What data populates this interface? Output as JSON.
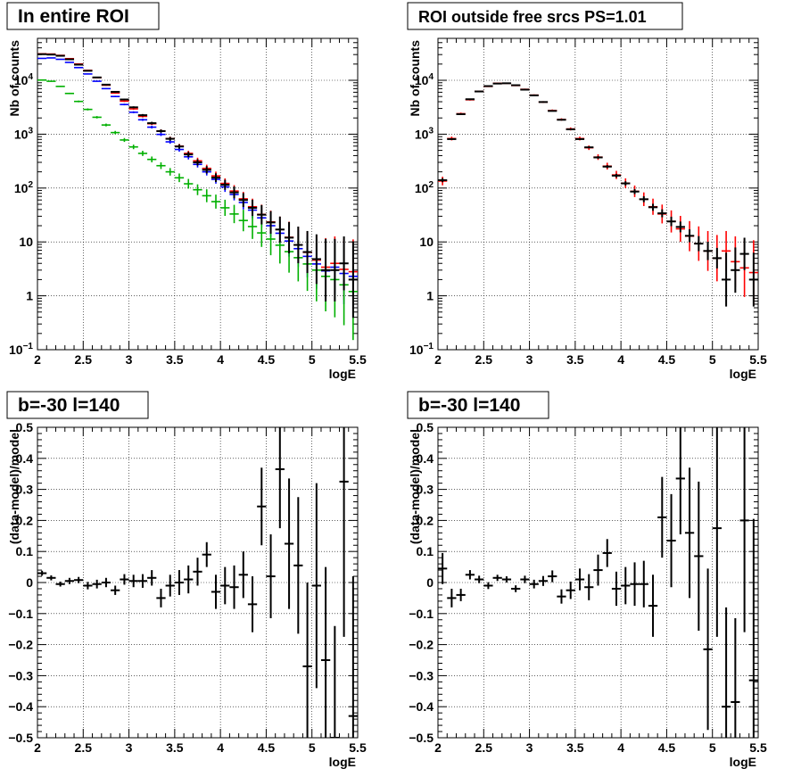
{
  "colors": {
    "data": "#000000",
    "model": "#ff0000",
    "model_blue": "#0000ff",
    "model_green": "#00b000",
    "grid": "#000000"
  },
  "chart_data": [
    {
      "type": "scatter",
      "title": "In entire ROI",
      "xlabel": "logE",
      "ylabel": "Nb of counts",
      "xlim": [
        2,
        5.5
      ],
      "ylim": [
        0.1,
        60000
      ],
      "yscale": "log",
      "grid": true,
      "xticks": [
        "2",
        "2.5",
        "3",
        "3.5",
        "4",
        "4.5",
        "5",
        "5.5"
      ],
      "yticks": [
        {
          "v": 0.1,
          "base": "10",
          "exp": "−1"
        },
        {
          "v": 1,
          "label": "1"
        },
        {
          "v": 10,
          "label": "10"
        },
        {
          "v": 100,
          "base": "10",
          "exp": "2"
        },
        {
          "v": 1000,
          "base": "10",
          "exp": "3"
        },
        {
          "v": 10000,
          "base": "10",
          "exp": "4"
        }
      ],
      "x": [
        2.05,
        2.15,
        2.25,
        2.35,
        2.45,
        2.55,
        2.65,
        2.75,
        2.85,
        2.95,
        3.05,
        3.15,
        3.25,
        3.35,
        3.45,
        3.55,
        3.65,
        3.75,
        3.85,
        3.95,
        4.05,
        4.15,
        4.25,
        4.35,
        4.45,
        4.55,
        4.65,
        4.75,
        4.85,
        4.95,
        5.05,
        5.15,
        5.25,
        5.35,
        5.45
      ],
      "series": [
        {
          "role": "data",
          "color": "#000000",
          "values": [
            30500,
            30000,
            28500,
            24500,
            19500,
            15000,
            11300,
            8300,
            6100,
            4400,
            3150,
            2250,
            1600,
            1140,
            820,
            590,
            420,
            300,
            218,
            156,
            115,
            83,
            60,
            43,
            32,
            23,
            17,
            12,
            8.8,
            6.5,
            4.8,
            3.0,
            3.0,
            4.0,
            2.0
          ],
          "err": [
            0.006,
            0.006,
            0.006,
            0.006,
            0.007,
            0.008,
            0.009,
            0.011,
            0.013,
            0.015,
            0.018,
            0.021,
            0.025,
            0.03,
            0.035,
            0.041,
            0.049,
            0.058,
            0.068,
            0.08,
            0.093,
            0.11,
            0.13,
            0.15,
            0.18,
            0.21,
            0.24,
            0.29,
            0.34,
            0.39,
            0.46,
            0.58,
            0.58,
            0.5,
            0.71
          ],
          "draw_err": false
        },
        {
          "role": "model",
          "color": "#ff0000",
          "values": [
            31000,
            30700,
            29000,
            25200,
            20100,
            15300,
            11200,
            8100,
            5800,
            4100,
            2950,
            2140,
            1560,
            1150,
            830,
            600,
            440,
            320,
            232,
            168,
            122,
            88,
            63,
            45,
            32.5,
            23.5,
            17,
            12.2,
            8.8,
            6.4,
            4.6,
            3.4,
            4.0,
            3.1,
            2.8
          ],
          "err": [
            0.006,
            0.006,
            0.006,
            0.006,
            0.007,
            0.008,
            0.009,
            0.011,
            0.013,
            0.015,
            0.018,
            0.021,
            0.025,
            0.03,
            0.035,
            0.041,
            0.049,
            0.058,
            0.068,
            0.08,
            0.093,
            0.11,
            0.13,
            0.15,
            0.18,
            0.21,
            0.24,
            0.29,
            0.34,
            0.39,
            0.46,
            0.54,
            0.5,
            0.57,
            0.6
          ],
          "draw_err": true
        },
        {
          "role": "model",
          "color": "#0000ff",
          "values": [
            25500,
            26000,
            24500,
            21500,
            17200,
            13100,
            9600,
            7000,
            5000,
            3550,
            2550,
            1850,
            1350,
            990,
            720,
            520,
            380,
            275,
            200,
            145,
            105,
            76,
            54,
            39,
            28,
            20,
            14.5,
            10.4,
            7.5,
            5.4,
            3.9,
            2.9,
            3.4,
            2.6,
            2.3
          ],
          "err": [
            0.006,
            0.006,
            0.006,
            0.006,
            0.007,
            0.008,
            0.009,
            0.011,
            0.013,
            0.015,
            0.018,
            0.021,
            0.025,
            0.03,
            0.035,
            0.041,
            0.049,
            0.058,
            0.068,
            0.08,
            0.093,
            0.11,
            0.13,
            0.15,
            0.18,
            0.21,
            0.24,
            0.29,
            0.34,
            0.39,
            0.46,
            0.54,
            0.5,
            0.57,
            0.6
          ],
          "draw_err": true
        },
        {
          "role": "model",
          "color": "#00b000",
          "values": [
            10100,
            9600,
            7700,
            5700,
            4050,
            2880,
            2060,
            1480,
            1070,
            780,
            580,
            440,
            340,
            260,
            200,
            155,
            120,
            93,
            72,
            56,
            43,
            33,
            25,
            19.3,
            14.7,
            11.3,
            8.7,
            6.6,
            5.1,
            3.9,
            3.0,
            2.3,
            2.0,
            1.6,
            1.2
          ],
          "err": [
            0.01,
            0.01,
            0.011,
            0.013,
            0.016,
            0.019,
            0.022,
            0.026,
            0.031,
            0.036,
            0.042,
            0.048,
            0.054,
            0.062,
            0.07,
            0.08,
            0.09,
            0.1,
            0.12,
            0.13,
            0.15,
            0.17,
            0.2,
            0.23,
            0.26,
            0.3,
            0.34,
            0.39,
            0.44,
            0.5,
            0.58,
            0.65,
            0.7,
            0.75,
            0.9
          ],
          "draw_err": true
        },
        {
          "role": "data",
          "color": "#000000",
          "values": [
            30500,
            30000,
            28500,
            24500,
            19500,
            15000,
            11300,
            8300,
            6100,
            4400,
            3150,
            2250,
            1600,
            1140,
            820,
            590,
            420,
            300,
            218,
            156,
            115,
            83,
            60,
            43,
            32,
            23,
            17,
            12,
            8.8,
            6.5,
            4.8,
            3.0,
            3.0,
            4.0,
            2.0
          ],
          "err": [
            0.006,
            0.006,
            0.006,
            0.006,
            0.007,
            0.008,
            0.009,
            0.011,
            0.013,
            0.015,
            0.018,
            0.021,
            0.025,
            0.03,
            0.035,
            0.041,
            0.049,
            0.058,
            0.068,
            0.08,
            0.093,
            0.11,
            0.13,
            0.15,
            0.18,
            0.21,
            0.24,
            0.29,
            0.34,
            0.39,
            0.46,
            0.58,
            0.58,
            0.5,
            0.71
          ],
          "draw_err": true
        }
      ]
    },
    {
      "type": "scatter",
      "title": "ROI outside free srcs PS=1.01",
      "xlabel": "logE",
      "ylabel": "Nb of counts",
      "xlim": [
        2,
        5.5
      ],
      "ylim": [
        0.1,
        60000
      ],
      "yscale": "log",
      "grid": true,
      "xticks": [
        "2",
        "2.5",
        "3",
        "3.5",
        "4",
        "4.5",
        "5",
        "5.5"
      ],
      "yticks": [
        {
          "v": 0.1,
          "base": "10",
          "exp": "−1"
        },
        {
          "v": 1,
          "label": "1"
        },
        {
          "v": 10,
          "label": "10"
        },
        {
          "v": 100,
          "base": "10",
          "exp": "2"
        },
        {
          "v": 1000,
          "base": "10",
          "exp": "3"
        },
        {
          "v": 10000,
          "base": "10",
          "exp": "4"
        }
      ],
      "x": [
        2.05,
        2.15,
        2.25,
        2.35,
        2.45,
        2.55,
        2.65,
        2.75,
        2.85,
        2.95,
        3.05,
        3.15,
        3.25,
        3.35,
        3.45,
        3.55,
        3.65,
        3.75,
        3.85,
        3.95,
        4.05,
        4.15,
        4.25,
        4.35,
        4.45,
        4.55,
        4.65,
        4.75,
        4.85,
        4.95,
        5.05,
        5.15,
        5.25,
        5.35,
        5.45
      ],
      "series": [
        {
          "role": "model",
          "color": "#ff0000",
          "values": [
            135,
            830,
            2400,
            4350,
            6250,
            7700,
            8800,
            8800,
            8000,
            6800,
            5300,
            3950,
            2750,
            1870,
            1250,
            830,
            560,
            375,
            255,
            175,
            123,
            87,
            62,
            45,
            33,
            24,
            17.5,
            12.8,
            9.3,
            6.8,
            5.0,
            6.8,
            4.3,
            3.3,
            2.7
          ],
          "err": [
            0.08,
            0.035,
            0.02,
            0.015,
            0.012,
            0.011,
            0.01,
            0.01,
            0.011,
            0.012,
            0.014,
            0.016,
            0.019,
            0.023,
            0.028,
            0.035,
            0.042,
            0.052,
            0.063,
            0.076,
            0.09,
            0.107,
            0.127,
            0.15,
            0.175,
            0.205,
            0.24,
            0.28,
            0.32,
            0.37,
            0.43,
            0.37,
            0.47,
            0.54,
            0.6
          ],
          "draw_err": true
        },
        {
          "role": "data",
          "color": "#000000",
          "values": [
            140,
            810,
            2350,
            4450,
            6200,
            7800,
            8700,
            8800,
            8100,
            6700,
            5250,
            3950,
            2700,
            1850,
            1230,
            810,
            570,
            370,
            250,
            170,
            122,
            86,
            62,
            44,
            34,
            24,
            19,
            13,
            9.3,
            6.8,
            5.0,
            2.0,
            3.0,
            6.0,
            2.0
          ],
          "err": [
            0.037,
            0.015,
            0.009,
            0.006,
            0.006,
            0.005,
            0.005,
            0.005,
            0.005,
            0.005,
            0.006,
            0.007,
            0.008,
            0.01,
            0.012,
            0.015,
            0.018,
            0.023,
            0.027,
            0.033,
            0.039,
            0.047,
            0.055,
            0.065,
            0.074,
            0.088,
            0.1,
            0.12,
            0.14,
            0.17,
            0.19,
            0.5,
            0.42,
            0.3,
            0.5
          ],
          "draw_err": true
        }
      ]
    },
    {
      "type": "scatter",
      "title": "b=-30 l=140",
      "xlabel": "logE",
      "ylabel": "(data-model)/model",
      "xlim": [
        2,
        5.5
      ],
      "ylim": [
        -0.5,
        0.5
      ],
      "yscale": "linear",
      "grid": true,
      "xticks": [
        "2",
        "2.5",
        "3",
        "3.5",
        "4",
        "4.5",
        "5",
        "5.5"
      ],
      "yticks": [
        {
          "v": -0.5,
          "label": "−0.5"
        },
        {
          "v": -0.4,
          "label": "−0.4"
        },
        {
          "v": -0.3,
          "label": "−0.3"
        },
        {
          "v": -0.2,
          "label": "−0.2"
        },
        {
          "v": -0.1,
          "label": "−0.1"
        },
        {
          "v": 0,
          "label": "0"
        },
        {
          "v": 0.1,
          "label": "0.1"
        },
        {
          "v": 0.2,
          "label": "0.2"
        },
        {
          "v": 0.3,
          "label": "0.3"
        },
        {
          "v": 0.4,
          "label": "0.4"
        },
        {
          "v": 0.5,
          "label": "0.5"
        }
      ],
      "x": [
        2.05,
        2.15,
        2.25,
        2.35,
        2.45,
        2.55,
        2.65,
        2.75,
        2.85,
        2.95,
        3.05,
        3.15,
        3.25,
        3.35,
        3.45,
        3.55,
        3.65,
        3.75,
        3.85,
        3.95,
        4.05,
        4.15,
        4.25,
        4.35,
        4.45,
        4.55,
        4.65,
        4.75,
        4.85,
        4.95,
        5.05,
        5.15,
        5.25,
        5.35,
        5.45
      ],
      "series": [
        {
          "role": "data",
          "color": "#000000",
          "values": [
            0.03,
            0.015,
            -0.005,
            0.005,
            0.008,
            -0.01,
            -0.005,
            0.0,
            -0.025,
            0.01,
            0.005,
            0.005,
            0.015,
            -0.05,
            -0.01,
            0.0,
            0.01,
            0.035,
            0.09,
            -0.03,
            -0.01,
            -0.015,
            0.025,
            -0.07,
            0.245,
            0.02,
            0.365,
            0.125,
            0.055,
            -0.27,
            -0.01,
            -0.25,
            -0.5,
            0.325,
            -0.43
          ],
          "err": [
            0.008,
            0.008,
            0.008,
            0.01,
            0.01,
            0.012,
            0.014,
            0.015,
            0.015,
            0.017,
            0.02,
            0.022,
            0.025,
            0.03,
            0.035,
            0.04,
            0.045,
            0.045,
            0.04,
            0.055,
            0.06,
            0.07,
            0.075,
            0.09,
            0.125,
            0.135,
            0.19,
            0.21,
            0.22,
            0.27,
            0.33,
            0.3,
            0.36,
            0.5,
            0.45
          ],
          "draw_err": true
        }
      ]
    },
    {
      "type": "scatter",
      "title": "b=-30 l=140",
      "xlabel": "logE",
      "ylabel": "(data-model)/model",
      "xlim": [
        2,
        5.5
      ],
      "ylim": [
        -0.5,
        0.5
      ],
      "yscale": "linear",
      "grid": true,
      "xticks": [
        "2",
        "2.5",
        "3",
        "3.5",
        "4",
        "4.5",
        "5",
        "5.5"
      ],
      "yticks": [
        {
          "v": -0.5,
          "label": "−0.5"
        },
        {
          "v": -0.4,
          "label": "−0.4"
        },
        {
          "v": -0.3,
          "label": "−0.3"
        },
        {
          "v": -0.2,
          "label": "−0.2"
        },
        {
          "v": -0.1,
          "label": "−0.1"
        },
        {
          "v": 0,
          "label": "0"
        },
        {
          "v": 0.1,
          "label": "0.1"
        },
        {
          "v": 0.2,
          "label": "0.2"
        },
        {
          "v": 0.3,
          "label": "0.3"
        },
        {
          "v": 0.4,
          "label": "0.4"
        },
        {
          "v": 0.5,
          "label": "0.5"
        }
      ],
      "x": [
        2.05,
        2.15,
        2.25,
        2.35,
        2.45,
        2.55,
        2.65,
        2.75,
        2.85,
        2.95,
        3.05,
        3.15,
        3.25,
        3.35,
        3.45,
        3.55,
        3.65,
        3.75,
        3.85,
        3.95,
        4.05,
        4.15,
        4.25,
        4.35,
        4.45,
        4.55,
        4.65,
        4.75,
        4.85,
        4.95,
        5.05,
        5.15,
        5.25,
        5.35,
        5.45
      ],
      "series": [
        {
          "role": "data",
          "color": "#000000",
          "values": [
            0.045,
            -0.05,
            -0.04,
            0.025,
            0.01,
            -0.01,
            0.015,
            0.01,
            -0.02,
            0.01,
            -0.005,
            0.005,
            0.02,
            -0.045,
            -0.025,
            0.01,
            -0.015,
            0.04,
            0.095,
            -0.02,
            -0.01,
            -0.005,
            -0.005,
            -0.075,
            0.21,
            0.135,
            0.335,
            0.16,
            0.085,
            -0.215,
            0.175,
            -0.4,
            -0.385,
            0.2,
            -0.315
          ],
          "err": [
            0.05,
            0.03,
            0.02,
            0.015,
            0.012,
            0.011,
            0.01,
            0.01,
            0.011,
            0.012,
            0.014,
            0.016,
            0.019,
            0.023,
            0.028,
            0.035,
            0.042,
            0.05,
            0.045,
            0.055,
            0.06,
            0.07,
            0.075,
            0.1,
            0.13,
            0.15,
            0.18,
            0.21,
            0.24,
            0.26,
            0.35,
            0.32,
            0.27,
            0.36,
            0.52
          ],
          "draw_err": true
        }
      ]
    }
  ]
}
